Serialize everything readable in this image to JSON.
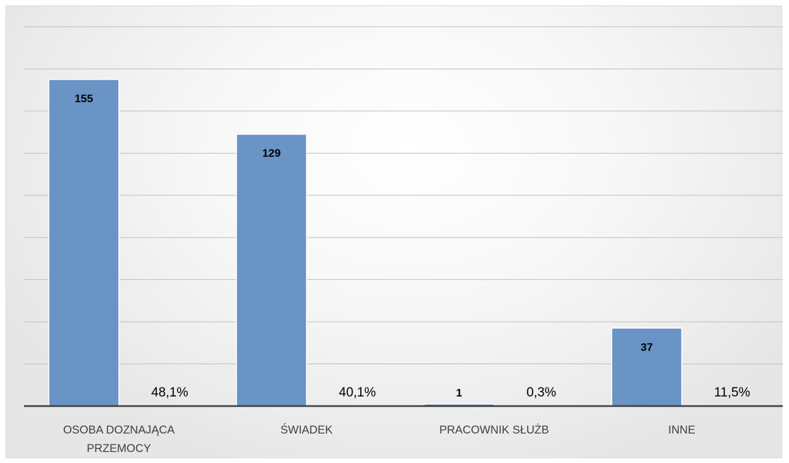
{
  "chart_data": {
    "type": "bar",
    "categories": [
      [
        "OSOBA DOZNAJĄCA",
        "PRZEMOCY"
      ],
      [
        "ŚWIADEK"
      ],
      [
        "PRACOWNIK SŁUŻB"
      ],
      [
        "INNE"
      ]
    ],
    "values": [
      155,
      129,
      1,
      37
    ],
    "percent_labels": [
      "48,1%",
      "40,1%",
      "0,3%",
      "11,5%"
    ],
    "value_labels": [
      "155",
      "129",
      "1",
      "37"
    ],
    "ylim": [
      0,
      180
    ],
    "grid": true,
    "legend": "none",
    "bar_color": "#6a93c6",
    "bar_edge_color": "#ffffff",
    "gridline_color": "#bfbfbf",
    "axis_color": "#404040"
  }
}
